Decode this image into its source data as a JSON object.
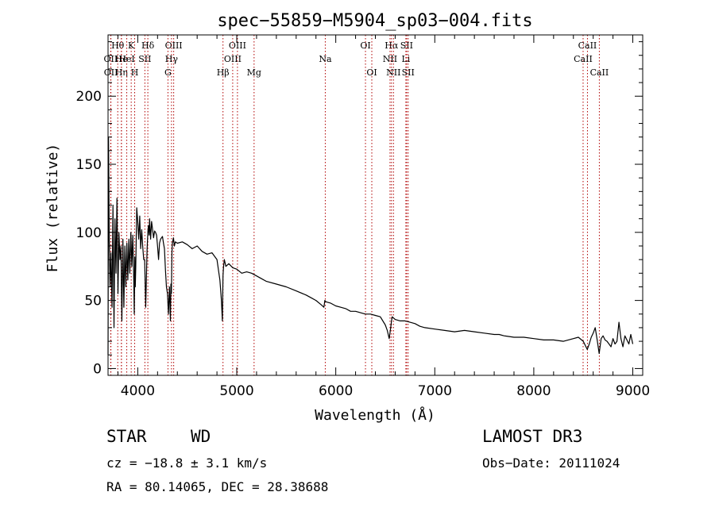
{
  "chart_data": {
    "type": "line",
    "title": "spec−55859−M5904_sp03−004.fits",
    "xlabel": "Wavelength (Å)",
    "ylabel": "Flux (relative)",
    "xlim": [
      3700,
      9100
    ],
    "ylim": [
      -5,
      245
    ],
    "xticks": [
      4000,
      5000,
      6000,
      7000,
      8000,
      9000
    ],
    "xtick_labels": [
      "4000",
      "5000",
      "6000",
      "7000",
      "8000",
      "9000"
    ],
    "yticks": [
      0,
      50,
      100,
      150,
      200
    ],
    "ytick_labels": [
      "0",
      "50",
      "100",
      "150",
      "200"
    ],
    "grid": false,
    "series": [
      {
        "name": "flux",
        "color": "#000000",
        "x": [
          3700,
          3705,
          3712,
          3720,
          3730,
          3740,
          3750,
          3760,
          3770,
          3780,
          3790,
          3800,
          3810,
          3820,
          3830,
          3840,
          3850,
          3860,
          3870,
          3880,
          3890,
          3900,
          3910,
          3920,
          3930,
          3940,
          3950,
          3960,
          3965,
          3970,
          3975,
          3980,
          3990,
          4000,
          4010,
          4020,
          4030,
          4040,
          4050,
          4060,
          4070,
          4080,
          4090,
          4095,
          4102,
          4108,
          4115,
          4120,
          4130,
          4140,
          4150,
          4160,
          4170,
          4180,
          4190,
          4200,
          4210,
          4220,
          4230,
          4240,
          4250,
          4260,
          4270,
          4280,
          4290,
          4300,
          4310,
          4320,
          4330,
          4335,
          4340,
          4345,
          4350,
          4360,
          4370,
          4380,
          4400,
          4450,
          4500,
          4550,
          4600,
          4650,
          4700,
          4750,
          4800,
          4830,
          4845,
          4855,
          4861,
          4867,
          4875,
          4890,
          4920,
          4960,
          5000,
          5050,
          5100,
          5150,
          5200,
          5250,
          5300,
          5400,
          5500,
          5600,
          5700,
          5750,
          5800,
          5850,
          5880,
          5890,
          5900,
          5950,
          6000,
          6050,
          6100,
          6150,
          6200,
          6250,
          6300,
          6350,
          6400,
          6450,
          6500,
          6520,
          6540,
          6555,
          6563,
          6570,
          6585,
          6600,
          6650,
          6700,
          6750,
          6800,
          6850,
          6900,
          7000,
          7100,
          7200,
          7300,
          7400,
          7500,
          7600,
          7650,
          7700,
          7800,
          7900,
          8000,
          8100,
          8200,
          8300,
          8400,
          8450,
          8500,
          8540,
          8560,
          8580,
          8600,
          8620,
          8640,
          8660,
          8680,
          8700,
          8720,
          8740,
          8760,
          8780,
          8800,
          8820,
          8840,
          8860,
          8880,
          8900,
          8920,
          8940,
          8960,
          8980,
          9000
        ],
        "y": [
          10,
          170,
          95,
          60,
          85,
          45,
          120,
          30,
          110,
          70,
          125,
          55,
          100,
          80,
          90,
          35,
          95,
          45,
          90,
          60,
          92,
          65,
          95,
          70,
          100,
          75,
          98,
          65,
          40,
          82,
          60,
          75,
          118,
          108,
          95,
          112,
          88,
          102,
          90,
          80,
          80,
          45,
          75,
          88,
          100,
          105,
          98,
          110,
          95,
          108,
          102,
          96,
          101,
          100,
          98,
          90,
          80,
          92,
          95,
          96,
          97,
          92,
          88,
          72,
          60,
          55,
          40,
          60,
          35,
          62,
          55,
          85,
          92,
          96,
          90,
          93,
          92,
          93,
          91,
          88,
          90,
          86,
          84,
          85,
          80,
          65,
          50,
          35,
          68,
          75,
          80,
          75,
          77,
          74,
          73,
          70,
          71,
          70,
          68,
          66,
          64,
          62,
          60,
          57,
          54,
          52,
          50,
          47,
          45,
          50,
          49,
          48,
          46,
          45,
          44,
          42,
          42,
          41,
          40,
          40,
          39,
          38,
          32,
          28,
          22,
          30,
          35,
          38,
          37,
          36,
          35,
          35,
          34,
          33,
          31,
          30,
          29,
          28,
          27,
          28,
          27,
          26,
          25,
          25,
          24,
          23,
          23,
          22,
          21,
          21,
          20,
          22,
          23,
          20,
          14,
          18,
          23,
          26,
          30,
          21,
          11,
          22,
          24,
          21,
          20,
          18,
          16,
          22,
          18,
          20,
          34,
          22,
          16,
          24,
          21,
          18,
          25,
          18
        ]
      }
    ],
    "lines": [
      {
        "label": "OII",
        "x": 3727,
        "row": 2
      },
      {
        "label": "OII",
        "x": 3729,
        "row": 3
      },
      {
        "label": "Hθ",
        "x": 3798,
        "row": 1
      },
      {
        "label": "He",
        "x": 3835,
        "row": 2
      },
      {
        "label": "Hη",
        "x": 3835,
        "row": 3
      },
      {
        "label": "K",
        "x": 3934,
        "row": 1
      },
      {
        "label": "HeI",
        "x": 3889,
        "row": 2
      },
      {
        "label": "H",
        "x": 3969,
        "row": 3
      },
      {
        "label": "SII",
        "x": 4072,
        "row": 2
      },
      {
        "label": "Hδ",
        "x": 4102,
        "row": 1
      },
      {
        "label": "OIII",
        "x": 4363,
        "row": 1
      },
      {
        "label": "Hγ",
        "x": 4341,
        "row": 2
      },
      {
        "label": "G",
        "x": 4305,
        "row": 3
      },
      {
        "label": "Hβ",
        "x": 4861,
        "row": 3
      },
      {
        "label": "OIII",
        "x": 5007,
        "row": 1
      },
      {
        "label": "OIII",
        "x": 4959,
        "row": 2
      },
      {
        "label": "Mg",
        "x": 5175,
        "row": 3
      },
      {
        "label": "Na",
        "x": 5894,
        "row": 2
      },
      {
        "label": "OI",
        "x": 6300,
        "row": 1
      },
      {
        "label": "OI",
        "x": 6364,
        "row": 3
      },
      {
        "label": "Hα",
        "x": 6563,
        "row": 1
      },
      {
        "label": "NII",
        "x": 6548,
        "row": 2
      },
      {
        "label": "NII",
        "x": 6583,
        "row": 3
      },
      {
        "label": "SII",
        "x": 6716,
        "row": 1
      },
      {
        "label": "Li",
        "x": 6708,
        "row": 2
      },
      {
        "label": "SII",
        "x": 6731,
        "row": 3
      },
      {
        "label": "CaII",
        "x": 8542,
        "row": 1
      },
      {
        "label": "CaII",
        "x": 8498,
        "row": 2
      },
      {
        "label": "CaII",
        "x": 8662,
        "row": 3
      }
    ]
  },
  "info": {
    "object_class": "STAR",
    "subclass": "WD",
    "survey": "LAMOST DR3",
    "cz": "cz = −18.8 ± 3.1 km/s",
    "obs_date": "Obs−Date: 20111024",
    "coords": "RA =  80.14065, DEC =  28.38688"
  },
  "colors": {
    "axis": "#000000",
    "spectrum": "#000000",
    "line_marker": "#b00000"
  }
}
